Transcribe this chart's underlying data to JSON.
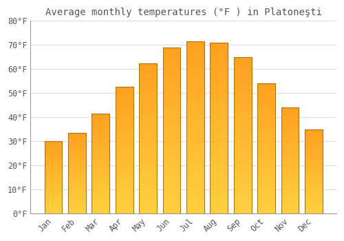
{
  "title": "Average monthly temperatures (°F ) in Platoneşti",
  "months": [
    "Jan",
    "Feb",
    "Mar",
    "Apr",
    "May",
    "Jun",
    "Jul",
    "Aug",
    "Sep",
    "Oct",
    "Nov",
    "Dec"
  ],
  "values": [
    30,
    33.5,
    41.5,
    52.5,
    62.5,
    69,
    71.5,
    71,
    65,
    54,
    44,
    35
  ],
  "bar_color_bottom": "#FFD040",
  "bar_color_top": "#FFA020",
  "bar_edge_color": "#AA7700",
  "background_color": "#FFFFFF",
  "plot_bg_color": "#FFFFFF",
  "grid_color": "#DDDDDD",
  "text_color": "#555555",
  "ylim": [
    0,
    80
  ],
  "yticks": [
    0,
    10,
    20,
    30,
    40,
    50,
    60,
    70,
    80
  ],
  "title_fontsize": 10,
  "tick_fontsize": 8.5,
  "bar_width": 0.75,
  "figsize": [
    5.0,
    3.5
  ],
  "dpi": 100
}
